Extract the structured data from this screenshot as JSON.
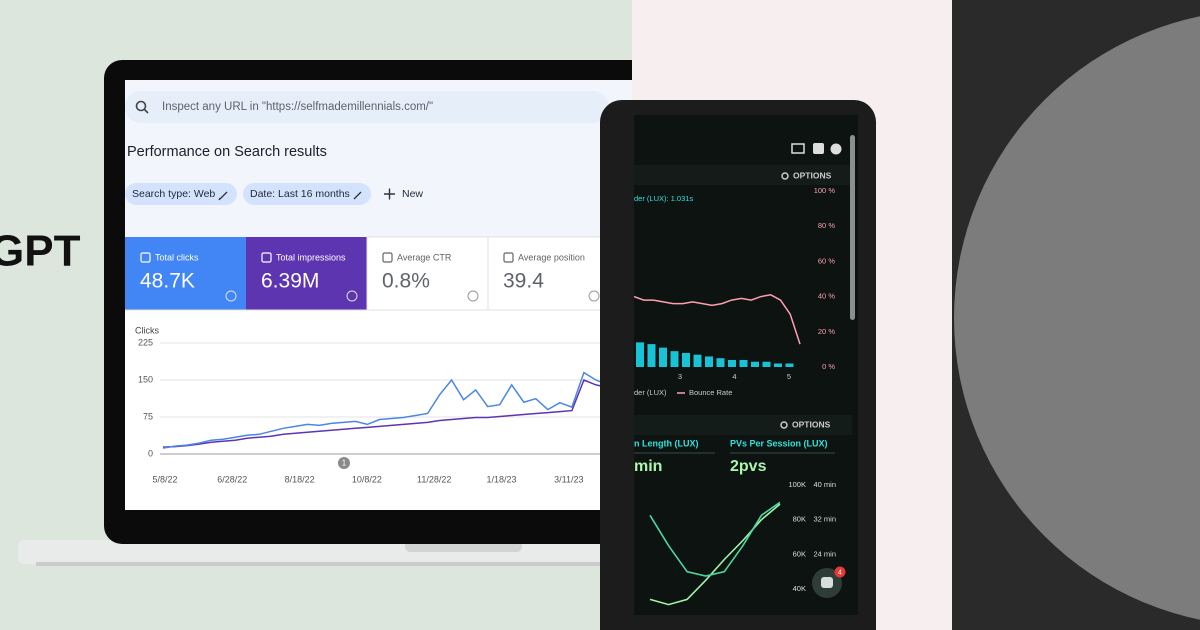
{
  "left_panel": {
    "headline": "GPT"
  },
  "search_console": {
    "search_placeholder": "Inspect any URL in \"https://selfmademillennials.com/\"",
    "heading": "Performance on Search results",
    "filters": [
      "Search type: Web",
      "Date: Last 16 months"
    ],
    "new_button": "New",
    "metrics": [
      {
        "label": "Total clicks",
        "value": "48.7K",
        "color": "#4285f4"
      },
      {
        "label": "Total impressions",
        "value": "6.39M",
        "color": "#5e35b1"
      },
      {
        "label": "Average CTR",
        "value": "0.8%",
        "color": "#ffffff"
      },
      {
        "label": "Average position",
        "value": "39.4",
        "color": "#ffffff"
      }
    ],
    "chart": {
      "type": "line",
      "y_label": "Clicks",
      "ylim": [
        0,
        225
      ],
      "yticks": [
        0,
        75,
        150,
        225
      ],
      "x_labels": [
        "5/8/22",
        "6/28/22",
        "8/18/22",
        "10/8/22",
        "11/28/22",
        "1/18/23",
        "3/11/23"
      ],
      "annotation": "1",
      "series": [
        {
          "color": "#4a86e8",
          "values": [
            12,
            16,
            18,
            22,
            28,
            30,
            34,
            38,
            40,
            46,
            52,
            56,
            60,
            58,
            62,
            64,
            66,
            60,
            70,
            72,
            74,
            78,
            82,
            120,
            150,
            110,
            130,
            96,
            100,
            140,
            105,
            112,
            90,
            104,
            95,
            165,
            150,
            140,
            128,
            135
          ]
        },
        {
          "color": "#5e35b1",
          "values": [
            14,
            15,
            17,
            20,
            24,
            26,
            28,
            32,
            34,
            36,
            40,
            42,
            44,
            46,
            48,
            50,
            52,
            54,
            56,
            58,
            60,
            62,
            64,
            68,
            70,
            72,
            74,
            74,
            76,
            78,
            80,
            82,
            84,
            86,
            88,
            150,
            140,
            135,
            130,
            128
          ]
        }
      ]
    }
  },
  "dashboard": {
    "options": [
      "OPTIONS",
      "OPTIONS"
    ],
    "caption": "der (LUX): 1.031s",
    "chart1": {
      "type": "bar",
      "ylim": [
        0,
        100
      ],
      "yticks": [
        {
          "value": 0,
          "label": "0 %"
        },
        {
          "value": 20,
          "label": "20 %"
        },
        {
          "value": 40,
          "label": "40 %"
        },
        {
          "value": 60,
          "label": "60 %"
        },
        {
          "value": 80,
          "label": "80 %"
        },
        {
          "value": 100,
          "label": "100 %"
        }
      ],
      "x_labels": [
        "3",
        "4",
        "5"
      ],
      "bars": {
        "name": "der (LUX)",
        "color": "#17c3d4",
        "values": [
          14,
          13,
          11,
          9,
          8,
          7,
          6,
          5,
          4,
          4,
          3,
          3,
          2,
          2
        ]
      },
      "line": {
        "name": "Bounce Rate",
        "color": "#ff9fb2",
        "values": [
          40,
          38,
          38,
          37,
          36,
          36,
          37,
          36,
          35,
          36,
          38,
          39,
          38,
          40,
          41,
          38,
          30,
          13
        ]
      }
    },
    "chart2": {
      "type": "line",
      "headers": [
        "n Length (LUX)",
        "PVs Per Session (LUX)"
      ],
      "big_values": [
        "min",
        "2pvs"
      ],
      "ylim": [
        40,
        100
      ],
      "yticks": [
        {
          "value": 40,
          "label": "40K"
        },
        {
          "value": 60,
          "label": "60K"
        },
        {
          "value": 80,
          "label": "80K"
        },
        {
          "value": 100,
          "label": "100K"
        }
      ],
      "y2lim": [
        16,
        40
      ],
      "y2ticks": [
        {
          "value": 24,
          "label": "24 min"
        },
        {
          "value": 32,
          "label": "32 min"
        },
        {
          "value": 40,
          "label": "40 min"
        }
      ],
      "series": [
        {
          "color": "#9ff5a8",
          "values": [
            34,
            31,
            34,
            45,
            57,
            68,
            80,
            89
          ]
        },
        {
          "color": "#4fd6a0",
          "axis": "y2",
          "values": [
            33,
            26,
            20,
            19,
            20,
            26,
            33,
            36
          ]
        }
      ]
    },
    "chat_badge": "4"
  }
}
